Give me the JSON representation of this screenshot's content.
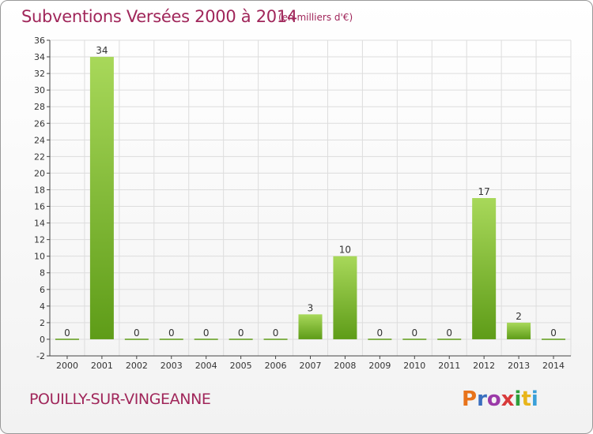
{
  "header": {
    "title": "Subventions Versées 2000 à 2014",
    "subtitle": "(en milliers d'€)"
  },
  "footer": {
    "commune": "POUILLY-SUR-VINGEANNE",
    "logo": "Proxiti",
    "logo_colors": [
      "#e8731a",
      "#3a6fbf",
      "#9b3aa8",
      "#d83a3a",
      "#2e9e3a",
      "#e8b51a",
      "#3aa0d8"
    ]
  },
  "colors": {
    "bar_light": "#a8d85a",
    "bar_dark": "#5e9c18",
    "title": "#a0265a",
    "grid": "#dddddd"
  },
  "chart_data": {
    "type": "bar",
    "title": "Subventions Versées 2000 à 2014",
    "subtitle": "(en milliers d'€)",
    "categories": [
      "2000",
      "2001",
      "2002",
      "2003",
      "2004",
      "2005",
      "2006",
      "2007",
      "2008",
      "2009",
      "2010",
      "2011",
      "2012",
      "2013",
      "2014"
    ],
    "values": [
      0,
      34,
      0,
      0,
      0,
      0,
      0,
      3,
      10,
      0,
      0,
      0,
      17,
      2,
      0
    ],
    "ylim": [
      -2,
      36
    ],
    "yticks": [
      -2,
      0,
      2,
      4,
      6,
      8,
      10,
      12,
      14,
      16,
      18,
      20,
      22,
      24,
      26,
      28,
      30,
      32,
      34,
      36
    ],
    "grid": true,
    "xlabel": "",
    "ylabel": ""
  }
}
